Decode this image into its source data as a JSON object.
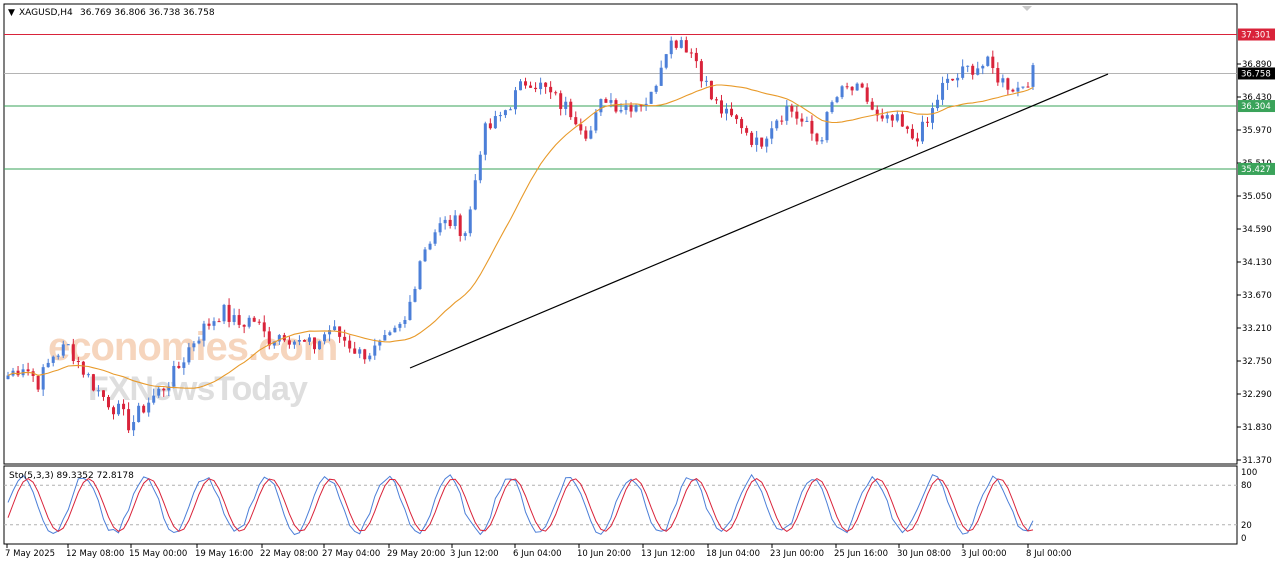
{
  "header": {
    "symbol": "XAGUSD,H4",
    "ohlc": "36.769 36.806 36.738 36.758"
  },
  "watermark": {
    "line1": "economies.com",
    "line2": "FXNewsToday"
  },
  "price_axis": {
    "ticks": [
      "36.890",
      "36.430",
      "35.970",
      "35.510",
      "35.050",
      "34.590",
      "34.130",
      "33.670",
      "33.210",
      "32.750",
      "32.290",
      "31.830",
      "31.370"
    ],
    "badges": [
      {
        "label": "37.301",
        "price": 37.301,
        "color": "#d9233a",
        "line_color": "#d9233a"
      },
      {
        "label": "36.758",
        "price": 36.758,
        "color": "#000000",
        "line_color": "#b4b4b4"
      },
      {
        "label": "36.304",
        "price": 36.304,
        "color": "#3aa35a",
        "line_color": "#3aa35a"
      },
      {
        "label": "35.427",
        "price": 35.427,
        "color": "#3aa35a",
        "line_color": "#3aa35a"
      }
    ]
  },
  "time_axis": {
    "labels": [
      "7 May 2025",
      "12 May 08:00",
      "15 May 00:00",
      "19 May 16:00",
      "22 May 08:00",
      "27 May 04:00",
      "29 May 20:00",
      "3 Jun 12:00",
      "6 Jun 04:00",
      "10 Jun 20:00",
      "13 Jun 12:00",
      "18 Jun 04:00",
      "23 Jun 00:00",
      "25 Jun 16:00",
      "30 Jun 08:00",
      "3 Jul 00:00",
      "8 Jul 00:00"
    ]
  },
  "oscillator": {
    "label": "Sto(5,3,3) 89.3352 72.8178",
    "scale": [
      "100",
      "80",
      "20",
      "0"
    ],
    "levels": [
      80,
      20
    ]
  },
  "colors": {
    "bull": "#4c7fd8",
    "bear": "#d9233a",
    "ma": "#e89a2a",
    "trendline": "#000000",
    "stoch_main": "#4c7fd8",
    "stoch_signal": "#d9233a"
  },
  "trendline": {
    "from_price": 32.75,
    "to_price": 36.75
  },
  "chart_data": {
    "type": "candlestick",
    "series": [
      {
        "name": "XAGUSD,H4",
        "close_path_approx": [
          32.55,
          32.7,
          32.45,
          32.85,
          32.95,
          32.6,
          32.3,
          32.1,
          31.85,
          32.15,
          32.35,
          32.6,
          33.0,
          33.25,
          33.45,
          33.25,
          33.35,
          33.05,
          33.15,
          33.0,
          32.95,
          33.2,
          33.05,
          32.85,
          32.9,
          33.05,
          33.3,
          34.25,
          34.6,
          34.7,
          34.55,
          35.9,
          36.1,
          36.4,
          36.7,
          36.55,
          36.35,
          36.2,
          35.9,
          36.45,
          36.3,
          36.35,
          36.4,
          37.15,
          37.25,
          36.95,
          36.4,
          36.15,
          36.05,
          35.75,
          36.1,
          36.3,
          36.05,
          35.8,
          36.4,
          36.55,
          36.45,
          36.05,
          36.1,
          35.85,
          36.0,
          36.55,
          36.7,
          36.85,
          36.88,
          36.65,
          36.55,
          36.76
        ]
      }
    ],
    "ylim": [
      31.37,
      37.5
    ],
    "stochastic_last": {
      "main": 89.3352,
      "signal": 72.8178
    }
  }
}
